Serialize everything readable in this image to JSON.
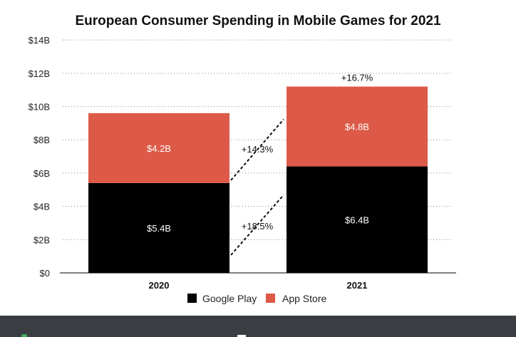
{
  "chart_data": {
    "type": "bar",
    "stacked": true,
    "title": "European Consumer Spending in Mobile Games for 2021",
    "categories": [
      "2020",
      "2021"
    ],
    "series": [
      {
        "name": "Google Play",
        "values": [
          5.4,
          6.4
        ],
        "labels": [
          "$5.4B",
          "$6.4B"
        ],
        "color": "#000000"
      },
      {
        "name": "App Store",
        "values": [
          4.2,
          4.8
        ],
        "labels": [
          "$4.2B",
          "$4.8B"
        ],
        "color": "#dd5a48"
      }
    ],
    "y_ticks": [
      {
        "value": 0,
        "label": "$0"
      },
      {
        "value": 2,
        "label": "$2B"
      },
      {
        "value": 4,
        "label": "$4B"
      },
      {
        "value": 6,
        "label": "$6B"
      },
      {
        "value": 8,
        "label": "$8B"
      },
      {
        "value": 10,
        "label": "$10B"
      },
      {
        "value": 12,
        "label": "$12B"
      },
      {
        "value": 14,
        "label": "$14B"
      }
    ],
    "ylim": [
      0,
      14
    ],
    "grid": "dotted horizontal",
    "legend_position": "bottom",
    "annotations": {
      "total_growth": "+16.7%",
      "app_store_growth": "+14.3%",
      "google_play_growth": "+18.5%"
    }
  }
}
